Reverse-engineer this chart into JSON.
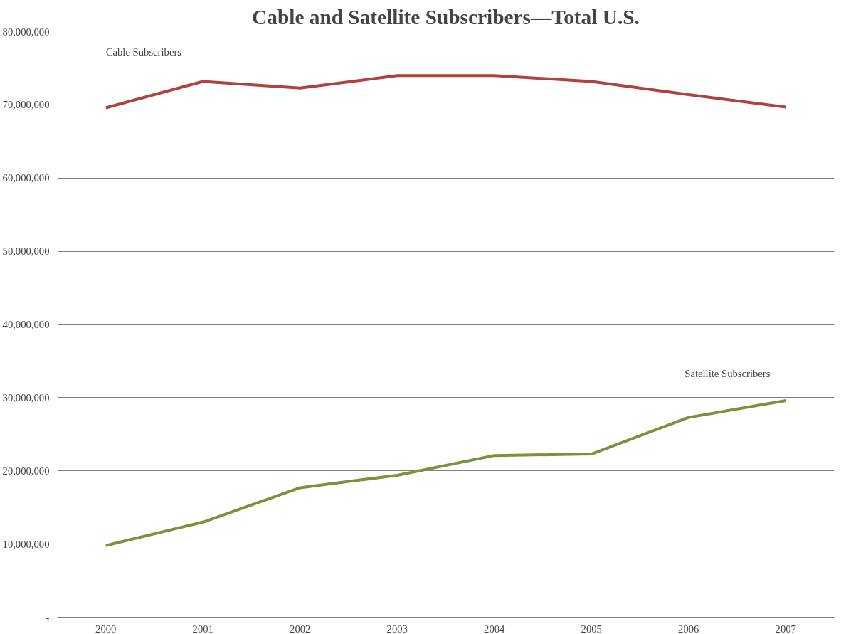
{
  "chart_data": {
    "type": "line",
    "title": "Cable and Satellite Subscribers—Total U.S.",
    "categories": [
      "2000",
      "2001",
      "2002",
      "2003",
      "2004",
      "2005",
      "2006",
      "2007"
    ],
    "series": [
      {
        "name": "Cable Subscribers",
        "color": "#b0413e",
        "values": [
          69600000,
          73200000,
          72300000,
          74000000,
          74000000,
          73200000,
          71400000,
          69700000
        ]
      },
      {
        "name": "Satellite Subscribers",
        "color": "#77933c",
        "values": [
          9800000,
          13000000,
          17700000,
          19400000,
          22100000,
          22300000,
          27300000,
          29600000
        ]
      }
    ],
    "ylim": [
      0,
      80000000
    ],
    "yticks": [
      {
        "value": 0,
        "label": "-"
      },
      {
        "value": 10000000,
        "label": "10,000,000"
      },
      {
        "value": 20000000,
        "label": "20,000,000"
      },
      {
        "value": 30000000,
        "label": "30,000,000"
      },
      {
        "value": 40000000,
        "label": "40,000,000"
      },
      {
        "value": 50000000,
        "label": "50,000,000"
      },
      {
        "value": 60000000,
        "label": "60,000,000"
      },
      {
        "value": 70000000,
        "label": "70,000,000"
      },
      {
        "value": 80000000,
        "label": "80,000,000"
      }
    ],
    "grid": "y",
    "marker": "none",
    "line_style": "solid"
  }
}
